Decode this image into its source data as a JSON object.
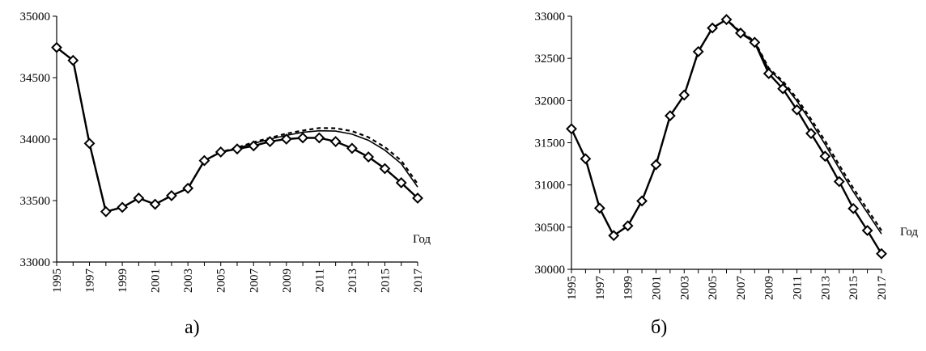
{
  "chart_data": [
    {
      "type": "line",
      "panel_label": "а)",
      "xlabel": "Год",
      "ylabel": "",
      "ylim": [
        33000,
        35000
      ],
      "yticks": [
        33000,
        33500,
        34000,
        34500,
        35000
      ],
      "xticks": [
        1995,
        1997,
        1999,
        2001,
        2003,
        2005,
        2007,
        2009,
        2011,
        2013,
        2015,
        2017
      ],
      "x": [
        1995,
        1996,
        1997,
        1998,
        1999,
        2000,
        2001,
        2002,
        2003,
        2004,
        2005,
        2006,
        2007,
        2008,
        2009,
        2010,
        2011,
        2012,
        2013,
        2014,
        2015,
        2016,
        2017
      ],
      "grid": false,
      "series": [
        {
          "style": "solid-markers",
          "values": [
            34745,
            34640,
            33965,
            33410,
            33445,
            33520,
            33470,
            33540,
            33600,
            33825,
            33895,
            33920,
            33945,
            33980,
            34000,
            34010,
            34010,
            33980,
            33925,
            33855,
            33760,
            33645,
            33520
          ]
        },
        {
          "style": "solid",
          "values": [
            34745,
            34640,
            33965,
            33410,
            33445,
            33520,
            33470,
            33540,
            33600,
            33825,
            33895,
            33925,
            33965,
            34000,
            34030,
            34055,
            34068,
            34065,
            34040,
            33990,
            33910,
            33800,
            33610
          ]
        },
        {
          "style": "dashed",
          "values": [
            34745,
            34640,
            33965,
            33410,
            33445,
            33520,
            33470,
            33540,
            33600,
            33825,
            33895,
            33930,
            33975,
            34010,
            34045,
            34070,
            34090,
            34088,
            34065,
            34015,
            33935,
            33825,
            33635
          ]
        }
      ]
    },
    {
      "type": "line",
      "panel_label": "б)",
      "xlabel": "Год",
      "ylabel": "",
      "ylim": [
        30000,
        33000
      ],
      "yticks": [
        30000,
        30500,
        31000,
        31500,
        32000,
        32500,
        33000
      ],
      "xticks": [
        1995,
        1997,
        1999,
        2001,
        2003,
        2005,
        2007,
        2009,
        2011,
        2013,
        2015,
        2017
      ],
      "x": [
        1995,
        1996,
        1997,
        1998,
        1999,
        2000,
        2001,
        2002,
        2003,
        2004,
        2005,
        2006,
        2007,
        2008,
        2009,
        2010,
        2011,
        2012,
        2013,
        2014,
        2015,
        2016,
        2017
      ],
      "grid": false,
      "series": [
        {
          "style": "solid-markers",
          "values": [
            31665,
            31310,
            30725,
            30400,
            30515,
            30810,
            31240,
            31820,
            32065,
            32580,
            32860,
            32960,
            32800,
            32690,
            32320,
            32140,
            31890,
            31610,
            31340,
            31040,
            30720,
            30460,
            30185
          ]
        },
        {
          "style": "solid",
          "values": [
            31665,
            31310,
            30725,
            30400,
            30515,
            30810,
            31240,
            31820,
            32065,
            32580,
            32860,
            32960,
            32810,
            32700,
            32370,
            32210,
            31995,
            31745,
            31480,
            31195,
            30920,
            30670,
            30420
          ]
        },
        {
          "style": "dashed",
          "values": [
            31665,
            31310,
            30725,
            30400,
            30515,
            30810,
            31240,
            31820,
            32065,
            32580,
            32860,
            32960,
            32815,
            32705,
            32385,
            32230,
            32025,
            31780,
            31520,
            31235,
            30960,
            30710,
            30460
          ]
        }
      ]
    }
  ]
}
